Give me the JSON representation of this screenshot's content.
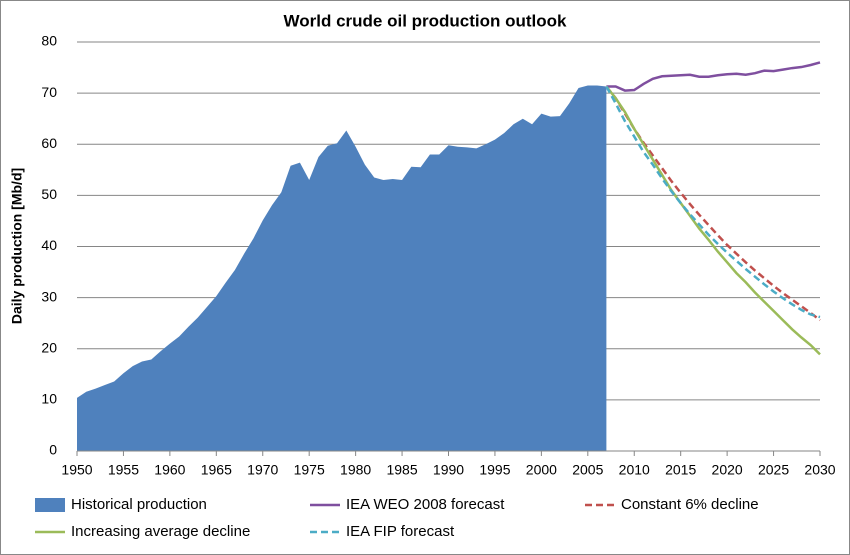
{
  "chart_data": {
    "type": "line",
    "title": "World crude oil production outlook",
    "y_label": "Daily production  [Mb/d]",
    "xlim": [
      1950,
      2030
    ],
    "xticks": [
      1950,
      1955,
      1960,
      1965,
      1970,
      1975,
      1980,
      1985,
      1990,
      1995,
      2000,
      2005,
      2010,
      2015,
      2020,
      2025,
      2030
    ],
    "ylim": [
      0,
      80
    ],
    "yticks": [
      0,
      10,
      20,
      30,
      40,
      50,
      60,
      70,
      80
    ],
    "grid": true,
    "legend": "bottom",
    "x": [
      1950,
      1951,
      1952,
      1953,
      1954,
      1955,
      1956,
      1957,
      1958,
      1959,
      1960,
      1961,
      1962,
      1963,
      1964,
      1965,
      1966,
      1967,
      1968,
      1969,
      1970,
      1971,
      1972,
      1973,
      1974,
      1975,
      1976,
      1977,
      1978,
      1979,
      1980,
      1981,
      1982,
      1983,
      1984,
      1985,
      1986,
      1987,
      1988,
      1989,
      1990,
      1991,
      1992,
      1993,
      1994,
      1995,
      1996,
      1997,
      1998,
      1999,
      2000,
      2001,
      2002,
      2003,
      2004,
      2005,
      2006,
      2007,
      2008,
      2009,
      2010,
      2011,
      2012,
      2013,
      2014,
      2015,
      2016,
      2017,
      2018,
      2019,
      2020,
      2021,
      2022,
      2023,
      2024,
      2025,
      2026,
      2027,
      2028,
      2029,
      2030
    ],
    "series": [
      {
        "name": "Historical production",
        "type": "area",
        "color": "#4f81bd",
        "dash": false,
        "values": [
          10.4,
          11.6,
          12.2,
          12.9,
          13.6,
          15.2,
          16.6,
          17.5,
          17.9,
          19.5,
          21.0,
          22.4,
          24.3,
          26.1,
          28.2,
          30.3,
          32.9,
          35.4,
          38.6,
          41.6,
          45.1,
          48.1,
          50.6,
          55.8,
          56.4,
          53.0,
          57.5,
          59.7,
          60.2,
          62.7,
          59.5,
          56.0,
          53.5,
          53.0,
          53.2,
          53.0,
          55.6,
          55.5,
          58.0,
          58.0,
          59.8,
          59.5,
          59.4,
          59.2,
          60.0,
          60.9,
          62.2,
          63.9,
          65.0,
          63.9,
          66.0,
          65.4,
          65.5,
          68.0,
          71.0,
          71.5,
          71.5,
          71.3,
          null,
          null,
          null,
          null,
          null,
          null,
          null,
          null,
          null,
          null,
          null,
          null,
          null,
          null,
          null,
          null,
          null,
          null,
          null,
          null,
          null,
          null,
          null
        ]
      },
      {
        "name": "IEA WEO 2008 forecast",
        "type": "line",
        "color": "#7f4f9f",
        "dash": false,
        "values": [
          null,
          null,
          null,
          null,
          null,
          null,
          null,
          null,
          null,
          null,
          null,
          null,
          null,
          null,
          null,
          null,
          null,
          null,
          null,
          null,
          null,
          null,
          null,
          null,
          null,
          null,
          null,
          null,
          null,
          null,
          null,
          null,
          null,
          null,
          null,
          null,
          null,
          null,
          null,
          null,
          null,
          null,
          null,
          null,
          null,
          null,
          null,
          null,
          null,
          null,
          null,
          null,
          null,
          null,
          null,
          null,
          null,
          71.3,
          71.3,
          70.5,
          70.6,
          71.8,
          72.8,
          73.3,
          73.4,
          73.5,
          73.6,
          73.2,
          73.2,
          73.5,
          73.7,
          73.8,
          73.6,
          73.9,
          74.4,
          74.3,
          74.6,
          74.9,
          75.1,
          75.5,
          76.0
        ]
      },
      {
        "name": "Constant 6% decline",
        "type": "line",
        "color": "#c0504d",
        "dash": true,
        "values": [
          null,
          null,
          null,
          null,
          null,
          null,
          null,
          null,
          null,
          null,
          null,
          null,
          null,
          null,
          null,
          null,
          null,
          null,
          null,
          null,
          null,
          null,
          null,
          null,
          null,
          null,
          null,
          null,
          null,
          null,
          null,
          null,
          null,
          null,
          null,
          null,
          null,
          null,
          null,
          null,
          null,
          null,
          null,
          null,
          null,
          null,
          null,
          null,
          null,
          null,
          null,
          null,
          null,
          null,
          null,
          null,
          null,
          71.3,
          69.0,
          66.0,
          63.0,
          60.3,
          57.8,
          55.3,
          52.8,
          50.5,
          48.3,
          46.2,
          44.2,
          42.2,
          40.3,
          38.6,
          36.9,
          35.3,
          33.8,
          32.3,
          30.9,
          29.6,
          28.3,
          27.0,
          25.6
        ]
      },
      {
        "name": "Increasing average decline",
        "type": "line",
        "color": "#9bbb59",
        "dash": false,
        "values": [
          null,
          null,
          null,
          null,
          null,
          null,
          null,
          null,
          null,
          null,
          null,
          null,
          null,
          null,
          null,
          null,
          null,
          null,
          null,
          null,
          null,
          null,
          null,
          null,
          null,
          null,
          null,
          null,
          null,
          null,
          null,
          null,
          null,
          null,
          null,
          null,
          null,
          null,
          null,
          null,
          null,
          null,
          null,
          null,
          null,
          null,
          null,
          null,
          null,
          null,
          null,
          null,
          null,
          null,
          null,
          null,
          null,
          71.3,
          69.0,
          66.3,
          63.0,
          60.0,
          57.0,
          54.0,
          51.0,
          48.5,
          46.0,
          43.5,
          41.3,
          39.0,
          36.9,
          34.8,
          33.0,
          31.0,
          29.2,
          27.4,
          25.6,
          23.8,
          22.2,
          20.7,
          18.9
        ]
      },
      {
        "name": "IEA FIP forecast",
        "type": "line",
        "color": "#4bacc6",
        "dash": true,
        "values": [
          null,
          null,
          null,
          null,
          null,
          null,
          null,
          null,
          null,
          null,
          null,
          null,
          null,
          null,
          null,
          null,
          null,
          null,
          null,
          null,
          null,
          null,
          null,
          null,
          null,
          null,
          null,
          null,
          null,
          null,
          null,
          null,
          null,
          null,
          null,
          null,
          null,
          null,
          null,
          null,
          null,
          null,
          null,
          null,
          null,
          null,
          null,
          null,
          null,
          null,
          null,
          null,
          null,
          null,
          null,
          null,
          null,
          71.3,
          68.0,
          64.5,
          61.5,
          58.5,
          56.0,
          53.3,
          50.8,
          48.5,
          46.3,
          44.3,
          42.3,
          40.5,
          38.8,
          37.2,
          35.6,
          34.1,
          32.6,
          31.2,
          29.9,
          28.7,
          27.6,
          26.7,
          26.2
        ]
      }
    ]
  }
}
